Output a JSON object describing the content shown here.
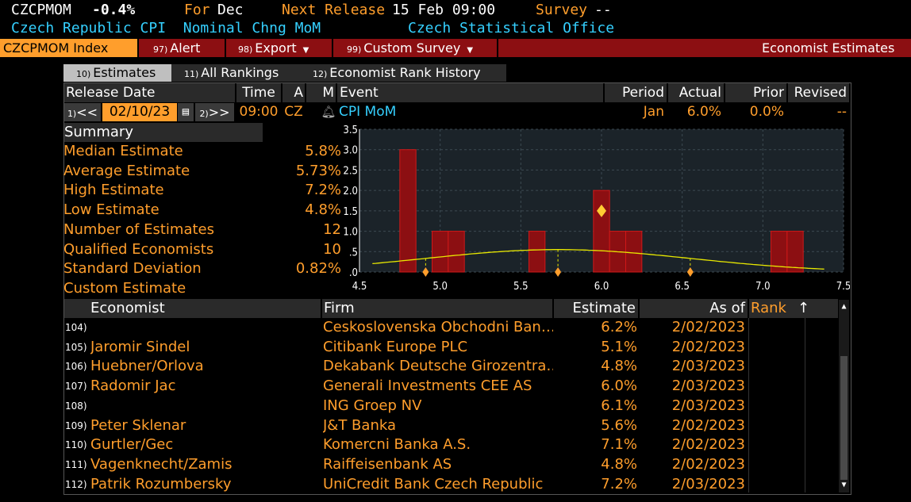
{
  "header": {
    "ticker": "CZCPMOM",
    "change": "-0.4%",
    "for_label": "For",
    "for_value": "Dec",
    "next_release_label": "Next Release",
    "next_release_value": "15 Feb 09:00",
    "survey_label": "Survey",
    "survey_value": "--",
    "description": "Czech Republic CPI  Nominal Chng MoM",
    "source": "Czech Statistical Office"
  },
  "menubar": {
    "index_label": "CZCPMOM Index",
    "alert": {
      "num": "97)",
      "label": "Alert"
    },
    "export": {
      "num": "98)",
      "label": "Export"
    },
    "custom_survey": {
      "num": "99)",
      "label": "Custom Survey"
    },
    "title": "Economist Estimates"
  },
  "tabs": [
    {
      "num": "10)",
      "label": "Estimates"
    },
    {
      "num": "11)",
      "label": "All Rankings"
    },
    {
      "num": "12)",
      "label": "Economist Rank History"
    }
  ],
  "release_table": {
    "headers": {
      "release_date": "Release Date",
      "time": "Time",
      "a": "A",
      "m": "M",
      "event": "Event",
      "period": "Period",
      "actual": "Actual",
      "prior": "Prior",
      "revised": "Revised"
    },
    "prev_btn": {
      "num": "1)",
      "label": "<<"
    },
    "date": "02/10/23",
    "next_btn": {
      "num": "2)",
      "label": ">>"
    },
    "time": "09:00",
    "country": "CZ",
    "event": "CPI MoM",
    "period": "Jan",
    "actual": "6.0%",
    "prior": "0.0%",
    "revised": "--"
  },
  "summary": {
    "title": "Summary",
    "items": [
      {
        "label": "Median Estimate",
        "value": "5.8%"
      },
      {
        "label": "Average Estimate",
        "value": "5.73%"
      },
      {
        "label": "High Estimate",
        "value": "7.2%"
      },
      {
        "label": "Low Estimate",
        "value": "4.8%"
      },
      {
        "label": "Number of Estimates",
        "value": "12"
      },
      {
        "label": "Qualified Economists",
        "value": "10"
      },
      {
        "label": "Standard Deviation",
        "value": "0.82%"
      },
      {
        "label": "Custom Estimate",
        "value": ""
      }
    ]
  },
  "chart_data": {
    "type": "bar",
    "xlim": [
      4.5,
      7.5
    ],
    "ylim": [
      0,
      3.5
    ],
    "x_ticks": [
      "4.5",
      "5.0",
      "5.5",
      "6.0",
      "6.5",
      "7.0",
      "7.5"
    ],
    "y_ticks": [
      "3.5",
      "3.0",
      "2.5",
      "2.0",
      "1.5",
      "1.0",
      ".5",
      ".0"
    ],
    "bins": [
      {
        "x": 4.8,
        "value": 3
      },
      {
        "x": 5.0,
        "value": 1
      },
      {
        "x": 5.1,
        "value": 1
      },
      {
        "x": 5.6,
        "value": 1
      },
      {
        "x": 6.0,
        "value": 2
      },
      {
        "x": 6.1,
        "value": 1
      },
      {
        "x": 6.2,
        "value": 1
      },
      {
        "x": 7.1,
        "value": 1
      },
      {
        "x": 7.2,
        "value": 1
      }
    ],
    "actual_marker": {
      "x": 6.0,
      "y": 1.5
    },
    "normal_curve": {
      "mean": 5.73,
      "sd": 0.82
    },
    "markers_x": [
      4.91,
      5.73,
      6.55
    ],
    "grid": true,
    "colors": {
      "bar": "#8c0f12",
      "bar_edge": "#d01818",
      "curve": "#e8e800",
      "marker": "#ffcc33",
      "plot_bg": "#1b2329"
    }
  },
  "estimates": {
    "headers": {
      "economist": "Economist",
      "firm": "Firm",
      "estimate": "Estimate",
      "as_of": "As of",
      "rank": "Rank"
    },
    "rows": [
      {
        "num": "104)",
        "economist": "",
        "firm": "Ceskoslovenska Obchodni Ban…",
        "estimate": "6.2%",
        "as_of": "2/02/2023"
      },
      {
        "num": "105)",
        "economist": "Jaromir Sindel",
        "firm": "Citibank Europe PLC",
        "estimate": "5.1%",
        "as_of": "2/02/2023"
      },
      {
        "num": "106)",
        "economist": "Huebner/Orlova",
        "firm": "Dekabank Deutsche Girozentra…",
        "estimate": "4.8%",
        "as_of": "2/03/2023"
      },
      {
        "num": "107)",
        "economist": "Radomir Jac",
        "firm": "Generali Investments CEE AS",
        "estimate": "6.0%",
        "as_of": "2/03/2023"
      },
      {
        "num": "108)",
        "economist": "",
        "firm": "ING Groep NV",
        "estimate": "6.1%",
        "as_of": "2/03/2023"
      },
      {
        "num": "109)",
        "economist": "Peter Sklenar",
        "firm": "J&T Banka",
        "estimate": "5.6%",
        "as_of": "2/02/2023"
      },
      {
        "num": "110)",
        "economist": "Gurtler/Gec",
        "firm": "Komercni Banka A.S.",
        "estimate": "7.1%",
        "as_of": "2/02/2023"
      },
      {
        "num": "111)",
        "economist": "Vagenknecht/Zamis",
        "firm": "Raiffeisenbank AS",
        "estimate": "4.8%",
        "as_of": "2/02/2023"
      },
      {
        "num": "112)",
        "economist": "Patrik Rozumbersky",
        "firm": "UniCredit Bank Czech Republic",
        "estimate": "7.2%",
        "as_of": "2/03/2023"
      }
    ]
  }
}
